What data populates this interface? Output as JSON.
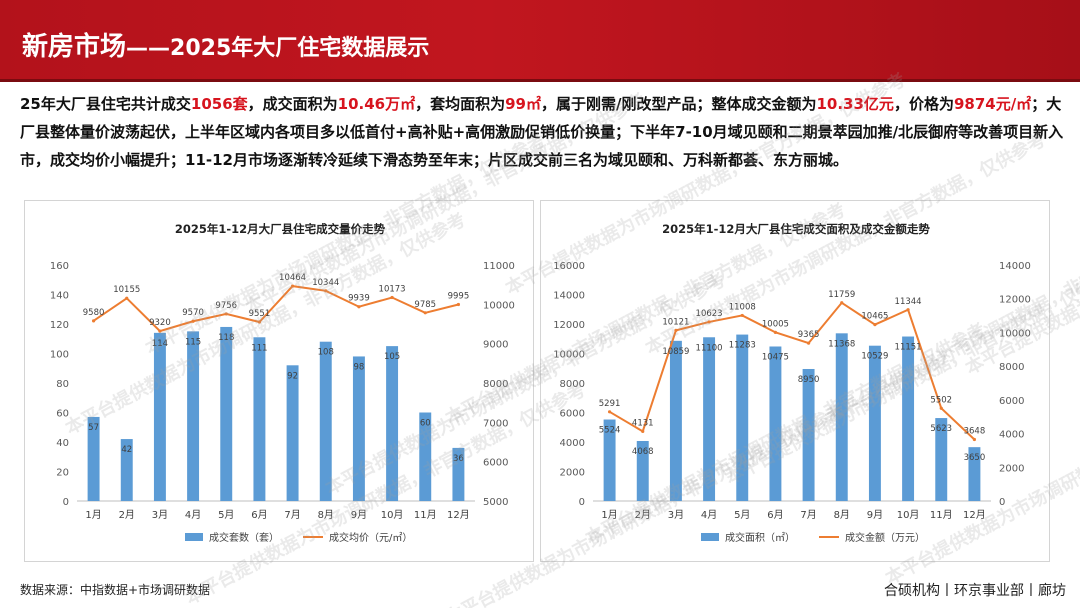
{
  "header": {
    "title_main": "新房市场",
    "title_sub": "——2025年大厂住宅数据展示"
  },
  "summary": {
    "parts": [
      {
        "t": "25年大厂县住宅共计成交",
        "h": false
      },
      {
        "t": "1056套",
        "h": true
      },
      {
        "t": "，成交面积为",
        "h": false
      },
      {
        "t": "10.46万㎡",
        "h": true
      },
      {
        "t": "，套均面积为",
        "h": false
      },
      {
        "t": "99㎡",
        "h": true
      },
      {
        "t": "，属于刚需/刚改型产品；整体成交金额为",
        "h": false
      },
      {
        "t": "10.33亿元",
        "h": true
      },
      {
        "t": "，价格为",
        "h": false
      },
      {
        "t": "9874元/㎡",
        "h": true
      },
      {
        "t": "；大厂县整体量价波荡起伏，上半年区域内各项目多以低首付+高补贴+高佣激励促销低价换量；下半年7-10月域见颐和二期景萃园加推/北辰御府等改善项目新入市，成交均价小幅提升；11-12月市场逐渐转冷延续下滑态势至年末；片区成交前三名为域见颐和、万科新都荟、东方丽城。",
        "h": false
      }
    ]
  },
  "colors": {
    "bar": "#5b9bd5",
    "line": "#ed7d31",
    "header": "#b3121b",
    "highlight": "#d7141e"
  },
  "chart_data": [
    {
      "type": "bar",
      "title": "2025年1-12月大厂县住宅成交量价走势",
      "categories": [
        "1月",
        "2月",
        "3月",
        "4月",
        "5月",
        "6月",
        "7月",
        "8月",
        "9月",
        "10月",
        "11月",
        "12月"
      ],
      "series": [
        {
          "name": "成交套数（套）",
          "type": "bar",
          "axis": "left",
          "values": [
            57,
            42,
            114,
            115,
            118,
            111,
            92,
            108,
            98,
            105,
            60,
            36
          ]
        },
        {
          "name": "成交均价（元/㎡）",
          "type": "line",
          "axis": "right",
          "values": [
            9580,
            10155,
            9320,
            9570,
            9756,
            9551,
            10464,
            10344,
            9939,
            10173,
            9785,
            9995
          ]
        }
      ],
      "ylim_left": [
        0,
        160
      ],
      "yticks_left": [
        0,
        20,
        40,
        60,
        80,
        100,
        120,
        140,
        160
      ],
      "ylim_right": [
        5000,
        11000
      ],
      "yticks_right": [
        5000,
        6000,
        7000,
        8000,
        9000,
        10000,
        11000
      ],
      "grid": false,
      "legend": "bottom"
    },
    {
      "type": "bar",
      "title": "2025年1-12月大厂县住宅成交面积及成交金额走势",
      "categories": [
        "1月",
        "2月",
        "3月",
        "4月",
        "5月",
        "6月",
        "7月",
        "8月",
        "9月",
        "10月",
        "11月",
        "12月"
      ],
      "series": [
        {
          "name": "成交面积（㎡）",
          "type": "bar",
          "axis": "left",
          "values": [
            5524,
            4068,
            10859,
            11100,
            11283,
            10475,
            8950,
            11368,
            10529,
            11151,
            5623,
            3650
          ]
        },
        {
          "name": "成交金额（万元）",
          "type": "line",
          "axis": "right",
          "values": [
            5291,
            4131,
            10121,
            10623,
            11008,
            10005,
            9365,
            11759,
            10465,
            11344,
            5502,
            3648
          ]
        }
      ],
      "ylim_left": [
        0,
        16000
      ],
      "yticks_left": [
        0,
        2000,
        4000,
        6000,
        8000,
        10000,
        12000,
        14000,
        16000
      ],
      "ylim_right": [
        0,
        14000
      ],
      "yticks_right": [
        0,
        2000,
        4000,
        6000,
        8000,
        10000,
        12000,
        14000
      ],
      "grid": false,
      "legend": "bottom"
    }
  ],
  "footer": {
    "source": "数据来源：中指数据+市场调研数据",
    "org": "合硕机构丨环京事业部丨廊坊"
  },
  "watermark": {
    "text": "本平台提供数据为市场调研数据，非官方数据，仅供参考"
  }
}
